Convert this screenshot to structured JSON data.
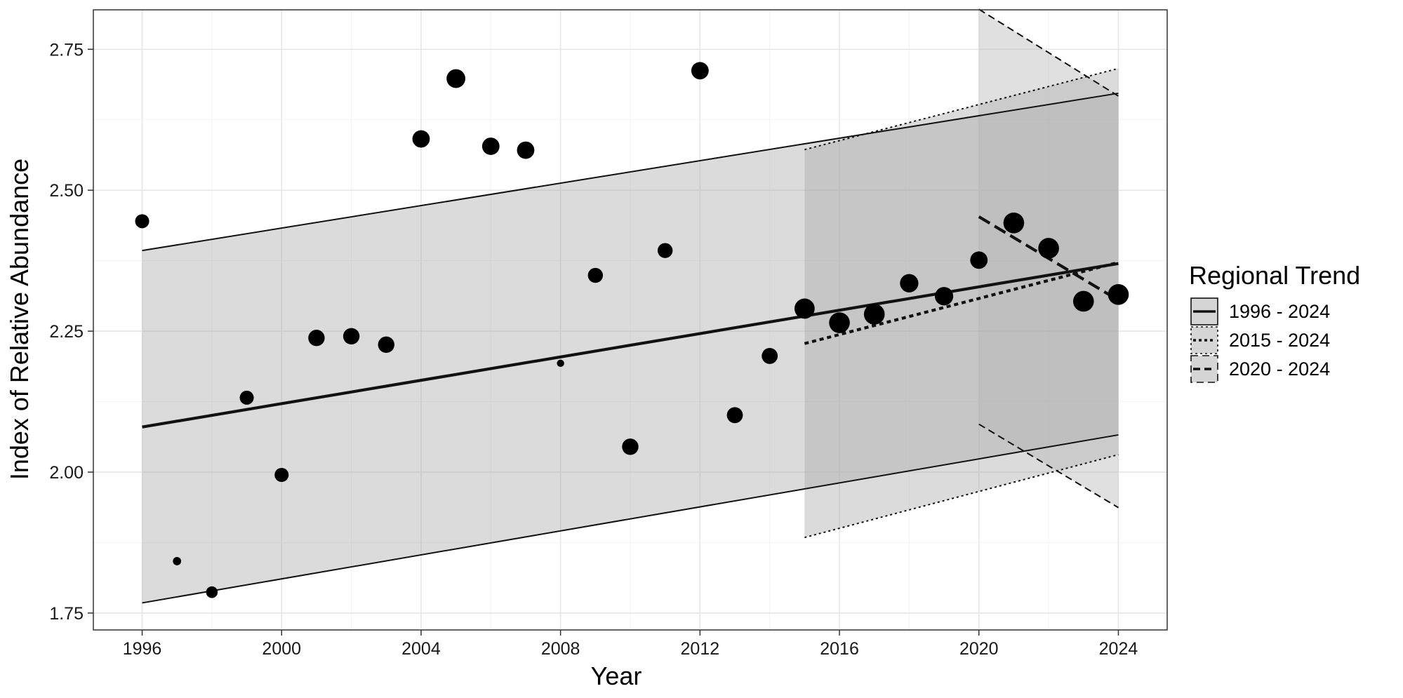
{
  "chart_data": {
    "type": "scatter",
    "xlabel": "Year",
    "ylabel": "Index of Relative Abundance",
    "xlim": [
      1994.6,
      2025.4
    ],
    "ylim": [
      1.72,
      2.82
    ],
    "x_ticks": [
      1996,
      2000,
      2004,
      2008,
      2012,
      2016,
      2020,
      2024
    ],
    "x_tick_labels": [
      "1996",
      "2000",
      "2004",
      "2008",
      "2012",
      "2016",
      "2020",
      "2024"
    ],
    "y_ticks": [
      1.75,
      2.0,
      2.25,
      2.5,
      2.75
    ],
    "y_tick_labels": [
      "1.75",
      "2.00",
      "2.25",
      "2.50",
      "2.75"
    ],
    "grid": true,
    "legend_position": "right",
    "legend_title": "Regional Trend",
    "colors": {
      "point": "#000000",
      "band_1996": "#a9a9a9",
      "band_2015": "#a9a9a9",
      "band_2020": "#b4b4b4",
      "line": "#000000",
      "grid": "#e6e6e6",
      "panel_border": "#333333"
    },
    "points": [
      {
        "year": 1996,
        "value": 2.445,
        "size": 2
      },
      {
        "year": 1997,
        "value": 1.842,
        "size": 0.8
      },
      {
        "year": 1998,
        "value": 1.787,
        "size": 1.5
      },
      {
        "year": 1999,
        "value": 2.132,
        "size": 2
      },
      {
        "year": 2000,
        "value": 1.995,
        "size": 2
      },
      {
        "year": 2001,
        "value": 2.238,
        "size": 2.5
      },
      {
        "year": 2002,
        "value": 2.241,
        "size": 2.5
      },
      {
        "year": 2003,
        "value": 2.226,
        "size": 2.5
      },
      {
        "year": 2004,
        "value": 2.591,
        "size": 2.7
      },
      {
        "year": 2005,
        "value": 2.698,
        "size": 3
      },
      {
        "year": 2006,
        "value": 2.578,
        "size": 2.7
      },
      {
        "year": 2007,
        "value": 2.571,
        "size": 2.7
      },
      {
        "year": 2008,
        "value": 2.193,
        "size": 0.6
      },
      {
        "year": 2009,
        "value": 2.349,
        "size": 2.2
      },
      {
        "year": 2010,
        "value": 2.045,
        "size": 2.5
      },
      {
        "year": 2011,
        "value": 2.393,
        "size": 2.2
      },
      {
        "year": 2012,
        "value": 2.712,
        "size": 2.7
      },
      {
        "year": 2013,
        "value": 2.101,
        "size": 2.4
      },
      {
        "year": 2014,
        "value": 2.206,
        "size": 2.4
      },
      {
        "year": 2015,
        "value": 2.29,
        "size": 3.3
      },
      {
        "year": 2016,
        "value": 2.265,
        "size": 3.4
      },
      {
        "year": 2017,
        "value": 2.28,
        "size": 3.4
      },
      {
        "year": 2018,
        "value": 2.335,
        "size": 2.9
      },
      {
        "year": 2019,
        "value": 2.312,
        "size": 2.9
      },
      {
        "year": 2020,
        "value": 2.376,
        "size": 2.7
      },
      {
        "year": 2021,
        "value": 2.442,
        "size": 3.4
      },
      {
        "year": 2022,
        "value": 2.397,
        "size": 3.4
      },
      {
        "year": 2023,
        "value": 2.303,
        "size": 3.4
      },
      {
        "year": 2024,
        "value": 2.315,
        "size": 3.4
      }
    ],
    "trends": [
      {
        "name": "1996 - 2024",
        "line_style": "solid",
        "x_start": 1996,
        "x_end": 2024,
        "fit_start": 2.08,
        "fit_end": 2.37,
        "upper_start": 2.393,
        "upper_end": 2.672,
        "lower_start": 1.768,
        "lower_end": 2.066
      },
      {
        "name": "2015 - 2024",
        "line_style": "dotted",
        "x_start": 2015,
        "x_end": 2024,
        "fit_start": 2.228,
        "fit_end": 2.372,
        "upper_start": 2.572,
        "upper_end": 2.716,
        "lower_start": 1.884,
        "lower_end": 2.031
      },
      {
        "name": "2020 - 2024",
        "line_style": "dashed",
        "x_start": 2020,
        "x_end": 2024,
        "fit_start": 2.453,
        "fit_end": 2.305,
        "upper_start": 2.821,
        "upper_end": 2.667,
        "lower_start": 2.085,
        "lower_end": 1.937
      }
    ]
  }
}
